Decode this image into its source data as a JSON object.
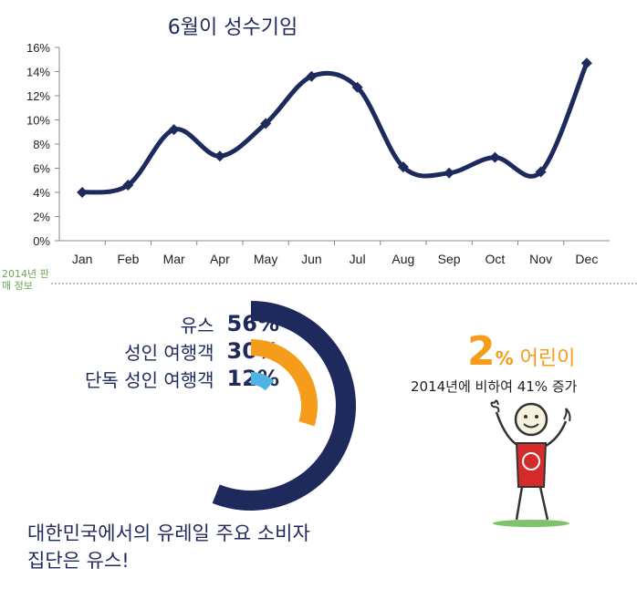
{
  "header": {
    "title": "6월이 성수기임"
  },
  "chart_data": {
    "type": "line",
    "title": "6월이 성수기임",
    "categories": [
      "Jan",
      "Feb",
      "Mar",
      "Apr",
      "May",
      "Jun",
      "Jul",
      "Aug",
      "Sep",
      "Oct",
      "Nov",
      "Dec"
    ],
    "series": [
      {
        "values": [
          4.0,
          4.6,
          9.2,
          7.0,
          9.7,
          13.6,
          12.7,
          6.1,
          5.6,
          6.9,
          5.7,
          14.7
        ]
      }
    ],
    "y_ticks": [
      "0%",
      "2%",
      "4%",
      "6%",
      "8%",
      "10%",
      "12%",
      "14%",
      "16%"
    ],
    "ylim": [
      0,
      16
    ],
    "grid": false,
    "color": "#1f2a5c"
  },
  "section": {
    "label": "2014년 판매 정보"
  },
  "segments": [
    {
      "label": "유스",
      "pct_text": "56%",
      "value": 56,
      "color": "#1f2a5c"
    },
    {
      "label": "성인 여행객",
      "pct_text": "30%",
      "value": 30,
      "color": "#f59c1a"
    },
    {
      "label": "단독 성인 여행객",
      "pct_text": "12%",
      "value": 12,
      "color": "#4fb3e3"
    }
  ],
  "summary": {
    "line1": "대한민국에서의 유레일 주요 소비자",
    "line2": "집단은 유스!"
  },
  "kids": {
    "big": "2",
    "pct": "%",
    "word": " 어린이",
    "note": "2014년에 비하여 41% 증가",
    "color": "#f59c1a"
  }
}
